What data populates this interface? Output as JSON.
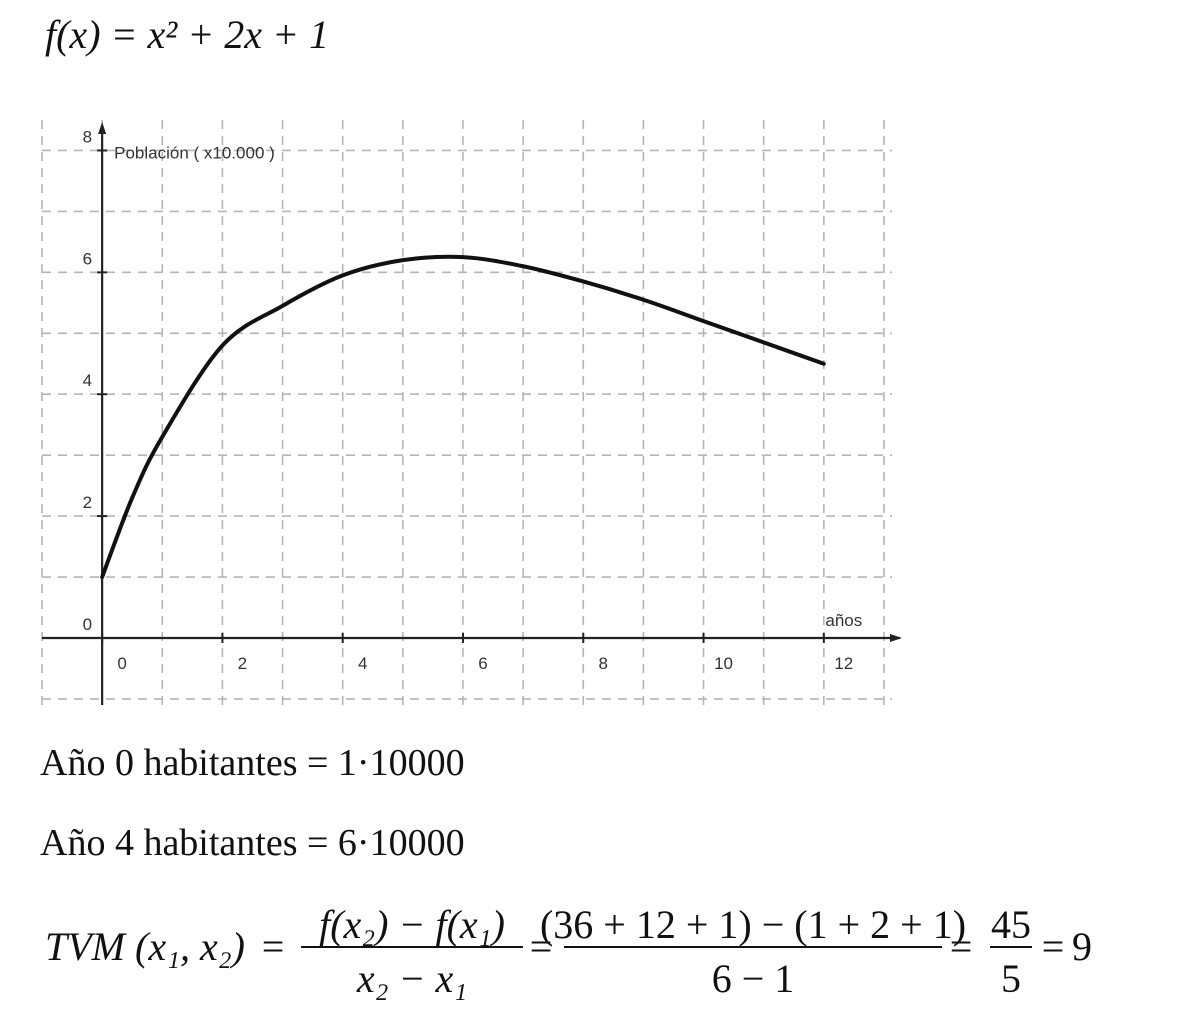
{
  "formula": "f(x) = x² + 2x + 1",
  "chart_data": {
    "type": "line",
    "y_axis_label": "Población ( x10.000 )",
    "x_axis_label": "años",
    "x": [
      0,
      0.5,
      1,
      2,
      3,
      4,
      5,
      6,
      7,
      8,
      9,
      10,
      11,
      12
    ],
    "series": [
      {
        "name": "Población",
        "color": "#111111",
        "values": [
          1.0,
          2.3,
          3.3,
          4.8,
          5.45,
          5.95,
          6.2,
          6.25,
          6.1,
          5.85,
          5.55,
          5.2,
          4.85,
          4.5
        ]
      }
    ],
    "xlim": [
      -1,
      13.3
    ],
    "ylim": [
      -1.1,
      8.5
    ],
    "xticks": [
      0,
      2,
      4,
      6,
      8,
      10,
      12
    ],
    "yticks": [
      0,
      2,
      4,
      6,
      8
    ],
    "minor_xticks": [
      -1,
      1,
      3,
      5,
      7,
      9,
      11,
      13
    ],
    "minor_yticks": [
      -1,
      1,
      3,
      5,
      7
    ],
    "grid": true
  },
  "lines": [
    "Año 0  habitantes  = 1·10000",
    "Año  4   habitantes = 6·10000"
  ],
  "tvm": {
    "lhs": "TVM (x₁, x₂)",
    "equals": "=",
    "fractions": [
      {
        "num": "f(x₂) − f(x₁)",
        "den": "x₂ − x₁"
      },
      {
        "num": "(36 + 12 + 1) − (1 + 2 + 1)",
        "den": "6 − 1"
      },
      {
        "num": "45",
        "den": "5"
      }
    ],
    "result": "9"
  }
}
